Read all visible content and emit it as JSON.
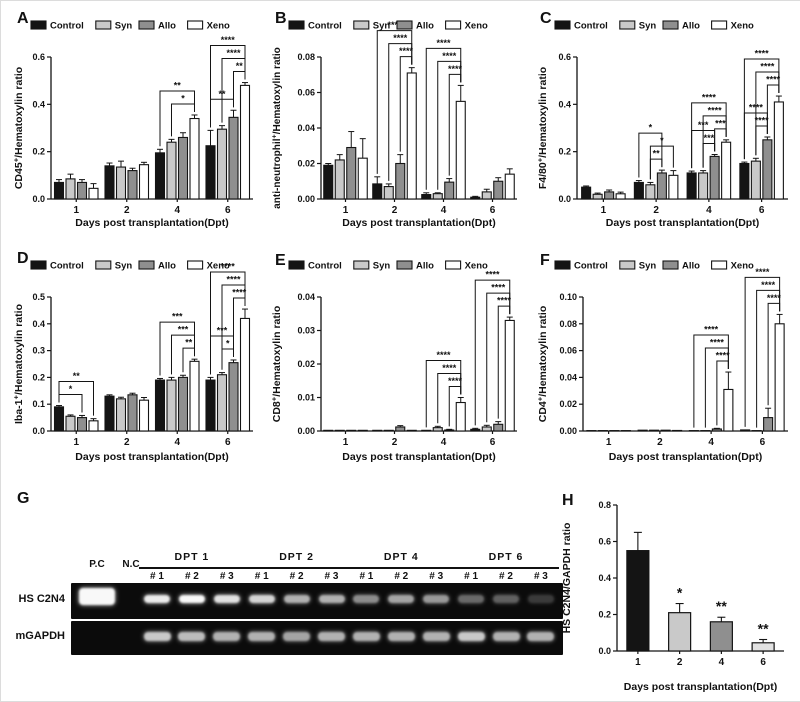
{
  "figure": {
    "legend": [
      "Control",
      "Syn",
      "Allo",
      "Xeno"
    ],
    "colors": {
      "Control": "#141414",
      "Syn": "#c9c9c9",
      "Allo": "#8f8f8f",
      "Xeno": "#ffffff"
    },
    "xlabel": "Days post transplantation(Dpt)",
    "categories": [
      "1",
      "2",
      "4",
      "6"
    ],
    "background": "#ffffff",
    "axis_color": "#141414"
  },
  "chart_data": [
    {
      "letter": "A",
      "type": "bar",
      "xlabel": "Days post transplantation(Dpt)",
      "categories": [
        "1",
        "2",
        "4",
        "6"
      ],
      "ylabel_pre": "CD45",
      "ylabel_sup": "+",
      "ylabel_post": "/Hematoxylin ratio",
      "ylim": [
        0,
        0.6
      ],
      "yticks": [
        "0.0",
        "0.2",
        "0.4",
        "0.6"
      ],
      "series": [
        {
          "name": "Control",
          "values": [
            0.07,
            0.14,
            0.195,
            0.225
          ],
          "errors": [
            0.012,
            0.012,
            0.015,
            0.065
          ]
        },
        {
          "name": "Syn",
          "values": [
            0.085,
            0.135,
            0.24,
            0.295
          ],
          "errors": [
            0.02,
            0.025,
            0.012,
            0.015
          ]
        },
        {
          "name": "Allo",
          "values": [
            0.07,
            0.12,
            0.26,
            0.345
          ],
          "errors": [
            0.012,
            0.01,
            0.02,
            0.03
          ]
        },
        {
          "name": "Xeno",
          "values": [
            0.045,
            0.145,
            0.34,
            0.48
          ],
          "errors": [
            0.02,
            0.01,
            0.015,
            0.012
          ]
        }
      ],
      "sig": [
        {
          "g": 2,
          "a": 1,
          "b": 3,
          "s": "*",
          "lvl": 0
        },
        {
          "g": 2,
          "a": 0,
          "b": 3,
          "s": "**",
          "lvl": 1
        },
        {
          "g": 3,
          "a": 0,
          "b": 2,
          "s": "**",
          "lvl": 0
        },
        {
          "g": 3,
          "a": 2,
          "b": 3,
          "s": "**",
          "lvl": 0
        },
        {
          "g": 3,
          "a": 1,
          "b": 3,
          "s": "****",
          "lvl": 1
        },
        {
          "g": 3,
          "a": 0,
          "b": 3,
          "s": "****",
          "lvl": 2
        }
      ]
    },
    {
      "letter": "B",
      "type": "bar",
      "xlabel": "Days post transplantation(Dpt)",
      "categories": [
        "1",
        "2",
        "4",
        "6"
      ],
      "ylabel_pre": "anti-neutrophil",
      "ylabel_sup": "+",
      "ylabel_post": "/Hematoxylin ratio",
      "ylim": [
        0,
        0.08
      ],
      "yticks": [
        "0.00",
        "0.02",
        "0.04",
        "0.06",
        "0.08"
      ],
      "series": [
        {
          "name": "Control",
          "values": [
            0.019,
            0.0085,
            0.0025,
            0.001
          ],
          "errors": [
            0.001,
            0.004,
            0.001,
            0.0005
          ]
        },
        {
          "name": "Syn",
          "values": [
            0.022,
            0.007,
            0.003,
            0.004
          ],
          "errors": [
            0.003,
            0.0015,
            0.0005,
            0.0015
          ]
        },
        {
          "name": "Allo",
          "values": [
            0.029,
            0.02,
            0.0095,
            0.01
          ],
          "errors": [
            0.009,
            0.005,
            0.002,
            0.002
          ]
        },
        {
          "name": "Xeno",
          "values": [
            0.023,
            0.071,
            0.055,
            0.014
          ],
          "errors": [
            0.011,
            0.003,
            0.009,
            0.003
          ]
        }
      ],
      "sig": [
        {
          "g": 1,
          "a": 2,
          "b": 3,
          "s": "****",
          "lvl": 0
        },
        {
          "g": 1,
          "a": 1,
          "b": 3,
          "s": "****",
          "lvl": 1
        },
        {
          "g": 1,
          "a": 0,
          "b": 3,
          "s": "****",
          "lvl": 2
        },
        {
          "g": 2,
          "a": 2,
          "b": 3,
          "s": "****",
          "lvl": 0
        },
        {
          "g": 2,
          "a": 1,
          "b": 3,
          "s": "****",
          "lvl": 1
        },
        {
          "g": 2,
          "a": 0,
          "b": 3,
          "s": "****",
          "lvl": 2
        }
      ]
    },
    {
      "letter": "C",
      "type": "bar",
      "xlabel": "Days post transplantation(Dpt)",
      "categories": [
        "1",
        "2",
        "4",
        "6"
      ],
      "ylabel_pre": "F4/80",
      "ylabel_sup": "+",
      "ylabel_post": "/Hematoxylin ratio",
      "ylim": [
        0,
        0.6
      ],
      "yticks": [
        "0.0",
        "0.2",
        "0.4",
        "0.6"
      ],
      "series": [
        {
          "name": "Control",
          "values": [
            0.05,
            0.07,
            0.11,
            0.15
          ],
          "errors": [
            0.005,
            0.008,
            0.008,
            0.006
          ]
        },
        {
          "name": "Syn",
          "values": [
            0.02,
            0.06,
            0.11,
            0.16
          ],
          "errors": [
            0.005,
            0.01,
            0.01,
            0.012
          ]
        },
        {
          "name": "Allo",
          "values": [
            0.03,
            0.11,
            0.18,
            0.25
          ],
          "errors": [
            0.008,
            0.012,
            0.008,
            0.012
          ]
        },
        {
          "name": "Xeno",
          "values": [
            0.022,
            0.1,
            0.24,
            0.41
          ],
          "errors": [
            0.007,
            0.02,
            0.01,
            0.025
          ]
        }
      ],
      "sig": [
        {
          "g": 1,
          "a": 1,
          "b": 2,
          "s": "**",
          "lvl": 0
        },
        {
          "g": 1,
          "a": 1,
          "b": 3,
          "s": "*",
          "lvl": 1
        },
        {
          "g": 1,
          "a": 0,
          "b": 2,
          "s": "*",
          "lvl": 2
        },
        {
          "g": 2,
          "a": 1,
          "b": 2,
          "s": "***",
          "lvl": 0
        },
        {
          "g": 2,
          "a": 0,
          "b": 2,
          "s": "***",
          "lvl": 1
        },
        {
          "g": 2,
          "a": 2,
          "b": 3,
          "s": "***",
          "lvl": 0
        },
        {
          "g": 2,
          "a": 1,
          "b": 3,
          "s": "****",
          "lvl": 1
        },
        {
          "g": 2,
          "a": 0,
          "b": 3,
          "s": "****",
          "lvl": 2
        },
        {
          "g": 3,
          "a": 1,
          "b": 2,
          "s": "****",
          "lvl": 0
        },
        {
          "g": 3,
          "a": 0,
          "b": 2,
          "s": "****",
          "lvl": 1
        },
        {
          "g": 3,
          "a": 2,
          "b": 3,
          "s": "****",
          "lvl": 0
        },
        {
          "g": 3,
          "a": 1,
          "b": 3,
          "s": "****",
          "lvl": 1
        },
        {
          "g": 3,
          "a": 0,
          "b": 3,
          "s": "****",
          "lvl": 2
        }
      ]
    },
    {
      "letter": "D",
      "type": "bar",
      "xlabel": "Days post transplantation(Dpt)",
      "categories": [
        "1",
        "2",
        "4",
        "6"
      ],
      "ylabel_pre": "Iba-1",
      "ylabel_sup": "+",
      "ylabel_post": "/Hematoxylin ratio",
      "ylim": [
        0,
        0.5
      ],
      "yticks": [
        "0.0",
        "0.1",
        "0.2",
        "0.3",
        "0.4",
        "0.5"
      ],
      "series": [
        {
          "name": "Control",
          "values": [
            0.09,
            0.13,
            0.19,
            0.19
          ],
          "errors": [
            0.005,
            0.005,
            0.006,
            0.01
          ]
        },
        {
          "name": "Syn",
          "values": [
            0.055,
            0.12,
            0.19,
            0.21
          ],
          "errors": [
            0.005,
            0.006,
            0.01,
            0.008
          ]
        },
        {
          "name": "Allo",
          "values": [
            0.05,
            0.135,
            0.2,
            0.255
          ],
          "errors": [
            0.008,
            0.006,
            0.008,
            0.01
          ]
        },
        {
          "name": "Xeno",
          "values": [
            0.038,
            0.115,
            0.26,
            0.42
          ],
          "errors": [
            0.008,
            0.01,
            0.008,
            0.035
          ]
        }
      ],
      "sig": [
        {
          "g": 0,
          "a": 0,
          "b": 2,
          "s": "*",
          "lvl": 0
        },
        {
          "g": 0,
          "a": 0,
          "b": 3,
          "s": "**",
          "lvl": 1
        },
        {
          "g": 2,
          "a": 2,
          "b": 3,
          "s": "**",
          "lvl": 0
        },
        {
          "g": 2,
          "a": 1,
          "b": 3,
          "s": "***",
          "lvl": 1
        },
        {
          "g": 2,
          "a": 0,
          "b": 3,
          "s": "***",
          "lvl": 2
        },
        {
          "g": 3,
          "a": 1,
          "b": 2,
          "s": "*",
          "lvl": 0
        },
        {
          "g": 3,
          "a": 0,
          "b": 2,
          "s": "***",
          "lvl": 1
        },
        {
          "g": 3,
          "a": 2,
          "b": 3,
          "s": "****",
          "lvl": 0
        },
        {
          "g": 3,
          "a": 1,
          "b": 3,
          "s": "****",
          "lvl": 1
        },
        {
          "g": 3,
          "a": 0,
          "b": 3,
          "s": "****",
          "lvl": 2
        }
      ]
    },
    {
      "letter": "E",
      "type": "bar",
      "xlabel": "Days post transplantation(Dpt)",
      "categories": [
        "1",
        "2",
        "4",
        "6"
      ],
      "ylabel_pre": "CD8",
      "ylabel_sup": "+",
      "ylabel_post": "/Hematoxylin ratio",
      "ylim": [
        0,
        0.04
      ],
      "yticks": [
        "0.00",
        "0.01",
        "0.02",
        "0.03",
        "0.04"
      ],
      "series": [
        {
          "name": "Control",
          "values": [
            0.0002,
            0.0002,
            0.0002,
            0.0005
          ],
          "errors": [
            0,
            0,
            0,
            0.0003
          ]
        },
        {
          "name": "Syn",
          "values": [
            0.0002,
            0.0002,
            0.001,
            0.0012
          ],
          "errors": [
            0,
            0,
            0.0004,
            0.0005
          ]
        },
        {
          "name": "Allo",
          "values": [
            0.0002,
            0.0012,
            0.0003,
            0.002
          ],
          "errors": [
            0,
            0.0004,
            0.0002,
            0.0008
          ]
        },
        {
          "name": "Xeno",
          "values": [
            0.0002,
            0.0002,
            0.0085,
            0.033
          ],
          "errors": [
            0,
            0,
            0.0015,
            0.001
          ]
        }
      ],
      "sig": [
        {
          "g": 2,
          "a": 2,
          "b": 3,
          "s": "****",
          "lvl": 0
        },
        {
          "g": 2,
          "a": 1,
          "b": 3,
          "s": "****",
          "lvl": 1
        },
        {
          "g": 2,
          "a": 0,
          "b": 3,
          "s": "****",
          "lvl": 2
        },
        {
          "g": 3,
          "a": 2,
          "b": 3,
          "s": "****",
          "lvl": 0
        },
        {
          "g": 3,
          "a": 1,
          "b": 3,
          "s": "****",
          "lvl": 1
        },
        {
          "g": 3,
          "a": 0,
          "b": 3,
          "s": "****",
          "lvl": 2
        }
      ]
    },
    {
      "letter": "F",
      "type": "bar",
      "xlabel": "Days post transplantation(Dpt)",
      "categories": [
        "1",
        "2",
        "4",
        "6"
      ],
      "ylabel_pre": "CD4",
      "ylabel_sup": "+",
      "ylabel_post": "/Hematoxylin ratio",
      "ylim": [
        0,
        0.1
      ],
      "yticks": [
        "0.00",
        "0.02",
        "0.04",
        "0.06",
        "0.08",
        "0.10"
      ],
      "series": [
        {
          "name": "Control",
          "values": [
            0.0003,
            0.0006,
            0.0003,
            0.0008
          ],
          "errors": [
            0,
            0,
            0,
            0
          ]
        },
        {
          "name": "Syn",
          "values": [
            0.0003,
            0.0006,
            0.0003,
            0.0003
          ],
          "errors": [
            0,
            0,
            0,
            0
          ]
        },
        {
          "name": "Allo",
          "values": [
            0.0003,
            0.0006,
            0.0015,
            0.01
          ],
          "errors": [
            0,
            0,
            0.0005,
            0.007
          ]
        },
        {
          "name": "Xeno",
          "values": [
            0.0003,
            0.0004,
            0.031,
            0.08
          ],
          "errors": [
            0,
            0,
            0.013,
            0.007
          ]
        }
      ],
      "sig": [
        {
          "g": 2,
          "a": 2,
          "b": 3,
          "s": "****",
          "lvl": 0
        },
        {
          "g": 2,
          "a": 1,
          "b": 3,
          "s": "****",
          "lvl": 1
        },
        {
          "g": 2,
          "a": 0,
          "b": 3,
          "s": "****",
          "lvl": 2
        },
        {
          "g": 3,
          "a": 2,
          "b": 3,
          "s": "****",
          "lvl": 0
        },
        {
          "g": 3,
          "a": 1,
          "b": 3,
          "s": "****",
          "lvl": 1
        },
        {
          "g": 3,
          "a": 0,
          "b": 3,
          "s": "****",
          "lvl": 2
        }
      ]
    },
    {
      "letter": "H",
      "type": "bar",
      "xlabel": "Days post transplantation(Dpt)",
      "categories": [
        "1",
        "2",
        "4",
        "6"
      ],
      "ylabel_pre": "HS C2N4/GAPDH ratio",
      "ylabel_sup": "",
      "ylabel_post": "",
      "ylim": [
        0,
        0.8
      ],
      "yticks": [
        "0.0",
        "0.2",
        "0.4",
        "0.6",
        "0.8"
      ],
      "values": [
        0.55,
        0.21,
        0.16,
        0.045
      ],
      "errors": [
        0.1,
        0.05,
        0.025,
        0.018
      ],
      "bar_colors": [
        "#141414",
        "#c9c9c9",
        "#8f8f8f",
        "#e2e2e2"
      ],
      "bar_sig": [
        "",
        "*",
        "**",
        "**"
      ]
    }
  ],
  "gel": {
    "letter": "G",
    "row_labels": [
      "HS C2N4",
      "mGAPDH"
    ],
    "control_lanes": [
      "P.C",
      "N.C"
    ],
    "groups": [
      {
        "label": "DPT 1",
        "subs": [
          "# 1",
          "# 2",
          "# 3"
        ]
      },
      {
        "label": "DPT 2",
        "subs": [
          "# 1",
          "# 2",
          "# 3"
        ]
      },
      {
        "label": "DPT 4",
        "subs": [
          "# 1",
          "# 2",
          "# 3"
        ]
      },
      {
        "label": "DPT 6",
        "subs": [
          "# 1",
          "# 2",
          "# 3"
        ]
      }
    ],
    "bands_c2n4": [
      1,
      0,
      0.95,
      1,
      0.9,
      0.85,
      0.7,
      0.7,
      0.55,
      0.65,
      0.6,
      0.4,
      0.36,
      0.2
    ],
    "bands_gapdh": [
      0,
      0,
      0.8,
      0.75,
      0.7,
      0.7,
      0.65,
      0.7,
      0.7,
      0.7,
      0.7,
      0.8,
      0.7,
      0.7
    ]
  }
}
